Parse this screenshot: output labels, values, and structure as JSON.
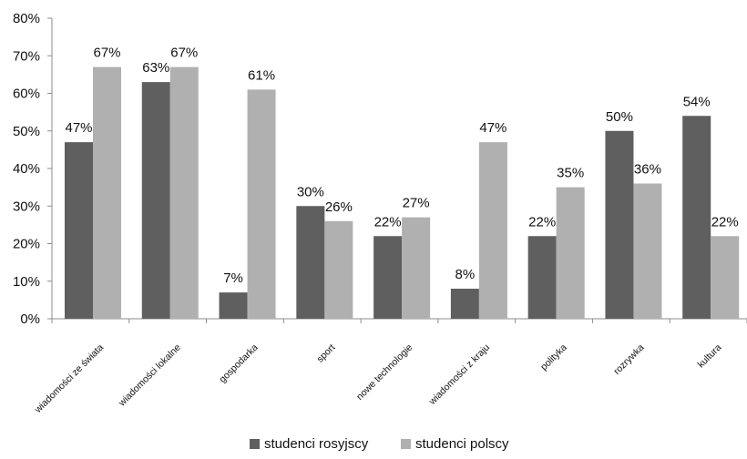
{
  "chart_data": {
    "type": "bar",
    "title": "",
    "xlabel": "",
    "ylabel": "",
    "categories": [
      "wiadomości ze świata",
      "wiadomości lokalne",
      "gospodarka",
      "sport",
      "nowe technologie",
      "wiadomości z kraju",
      "polityka",
      "rozrywka",
      "kultura"
    ],
    "series": [
      {
        "name": "studenci rosyjscy",
        "values": [
          47,
          63,
          7,
          30,
          22,
          8,
          22,
          50,
          54
        ],
        "color": "#5f5f5f"
      },
      {
        "name": "studenci polscy",
        "values": [
          67,
          67,
          61,
          26,
          27,
          47,
          35,
          36,
          22
        ],
        "color": "#b0b0b0"
      }
    ],
    "ylim": [
      0,
      80
    ],
    "yticks": [
      0,
      10,
      20,
      30,
      40,
      50,
      60,
      70,
      80
    ],
    "y_format": "percent",
    "grid": false,
    "data_labels": true,
    "legend": "bottom-center"
  }
}
